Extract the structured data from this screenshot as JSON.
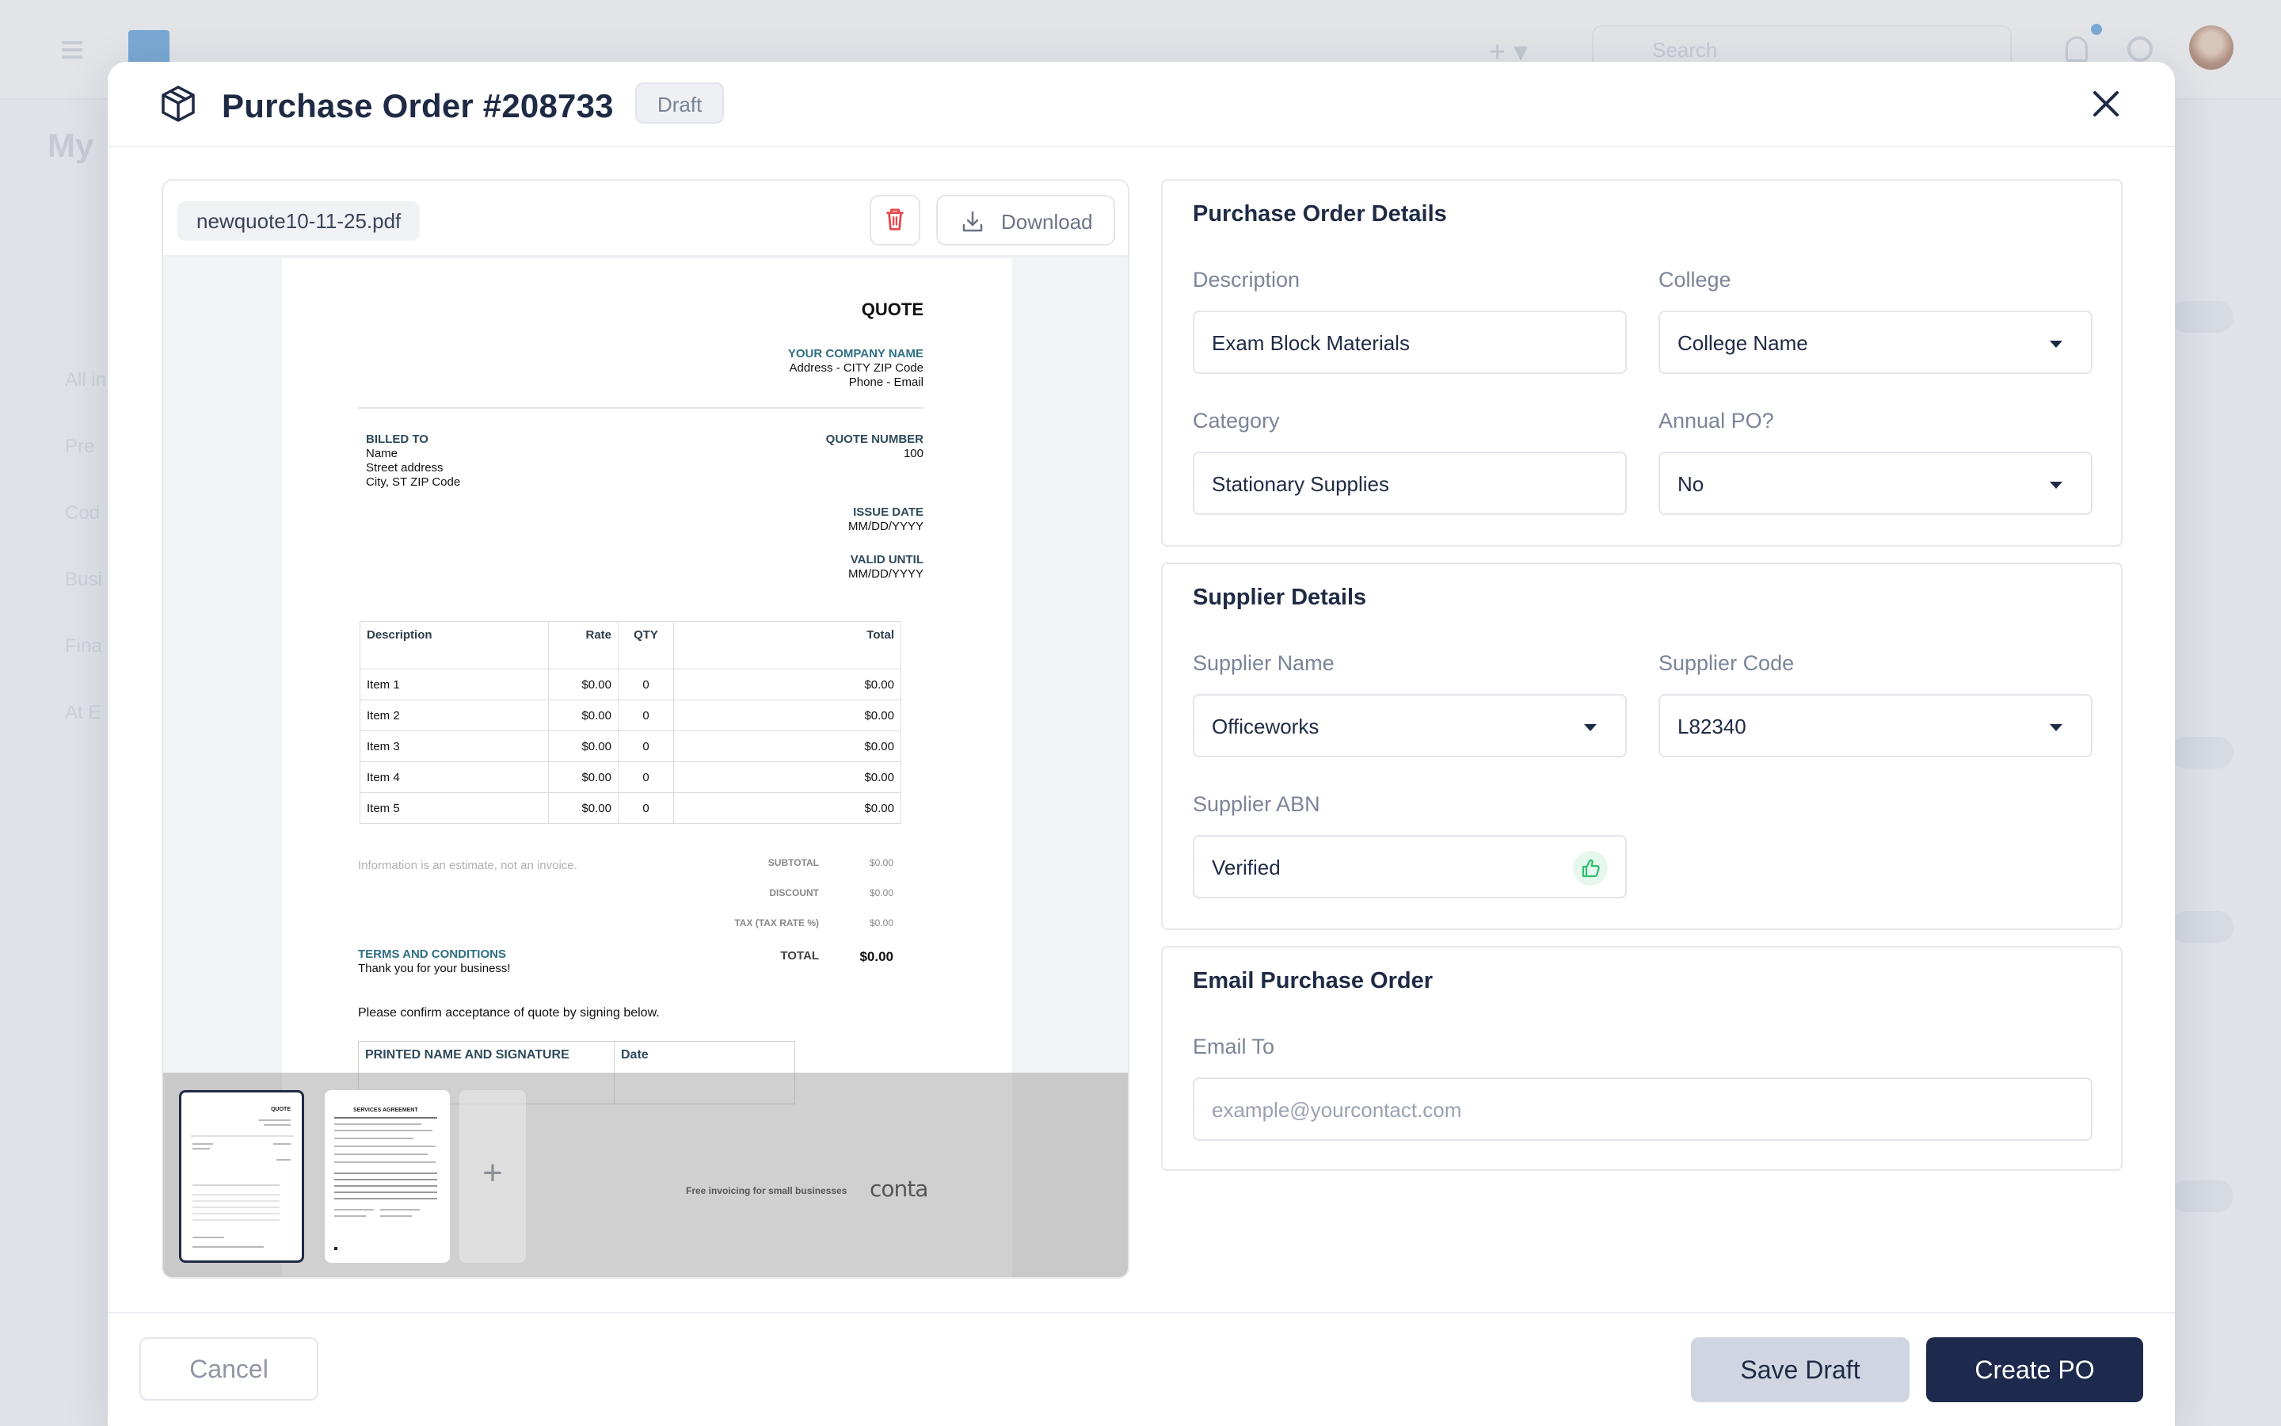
{
  "background": {
    "search_placeholder": "Search",
    "page_title": "My",
    "side_items": [
      "All in",
      "Pre",
      "Cod",
      "Busi",
      "Fina",
      "At E"
    ]
  },
  "modal": {
    "title": "Purchase Order #208733",
    "status_badge": "Draft",
    "icons": {
      "header": "package-icon",
      "close": "close-icon"
    }
  },
  "preview": {
    "file_name": "newquote10-11-25.pdf",
    "download_label": "Download",
    "icons": {
      "delete": "trash-icon",
      "download": "download-icon",
      "add": "plus-icon"
    },
    "quote": {
      "title": "QUOTE",
      "company_name": "YOUR COMPANY NAME",
      "company_address": "Address - CITY ZIP Code",
      "company_contact": "Phone - Email",
      "billed_to_label": "BILLED TO",
      "billed_name": "Name",
      "billed_street": "Street address",
      "billed_city": "City, ST ZIP Code",
      "quote_number_label": "QUOTE NUMBER",
      "quote_number": "100",
      "issue_date_label": "ISSUE DATE",
      "issue_date": "MM/DD/YYYY",
      "valid_until_label": "VALID UNTIL",
      "valid_until": "MM/DD/YYYY",
      "table_headers": [
        "Description",
        "Rate",
        "QTY",
        "Total"
      ],
      "items": [
        {
          "desc": "Item 1",
          "rate": "$0.00",
          "qty": "0",
          "total": "$0.00"
        },
        {
          "desc": "Item 2",
          "rate": "$0.00",
          "qty": "0",
          "total": "$0.00"
        },
        {
          "desc": "Item 3",
          "rate": "$0.00",
          "qty": "0",
          "total": "$0.00"
        },
        {
          "desc": "Item 4",
          "rate": "$0.00",
          "qty": "0",
          "total": "$0.00"
        },
        {
          "desc": "Item 5",
          "rate": "$0.00",
          "qty": "0",
          "total": "$0.00"
        }
      ],
      "note": "Information is an estimate, not an invoice.",
      "subtotal_label": "SUBTOTAL",
      "subtotal": "$0.00",
      "discount_label": "DISCOUNT",
      "discount": "$0.00",
      "tax_label": "TAX (TAX RATE %)",
      "tax": "$0.00",
      "total_label": "TOTAL",
      "total": "$0.00",
      "terms_title": "TERMS AND CONDITIONS",
      "terms_text": "Thank you for your business!",
      "confirm_text": "Please confirm acceptance of quote by signing below.",
      "signature_label": "PRINTED NAME AND SIGNATURE",
      "date_label": "Date",
      "footer_text": "Free invoicing for small businesses",
      "brand": "conta"
    },
    "thumbnails": [
      {
        "label": "QUOTE",
        "active": true
      },
      {
        "label": "SERVICES AGREEMENT",
        "active": false
      }
    ]
  },
  "purchase_order_details": {
    "title": "Purchase Order Details",
    "description_label": "Description",
    "description_value": "Exam Block Materials",
    "college_label": "College",
    "college_value": "College Name",
    "category_label": "Category",
    "category_value": "Stationary Supplies",
    "annual_label": "Annual PO?",
    "annual_value": "No"
  },
  "supplier_details": {
    "title": "Supplier Details",
    "name_label": "Supplier Name",
    "name_value": "Officeworks",
    "code_label": "Supplier Code",
    "code_value": "L82340",
    "abn_label": "Supplier ABN",
    "abn_value": "Verified",
    "abn_icon": "thumbs-up-icon"
  },
  "email_po": {
    "title": "Email Purchase Order",
    "email_label": "Email To",
    "email_placeholder": "example@yourcontact.com"
  },
  "footer": {
    "cancel_label": "Cancel",
    "save_draft_label": "Save Draft",
    "create_label": "Create PO"
  },
  "colors": {
    "primary": "#1d2a4d",
    "secondary_button": "#cfd6e2",
    "danger": "#e5484d",
    "success": "#2fbf71",
    "accent_text": "#2f6f83"
  }
}
